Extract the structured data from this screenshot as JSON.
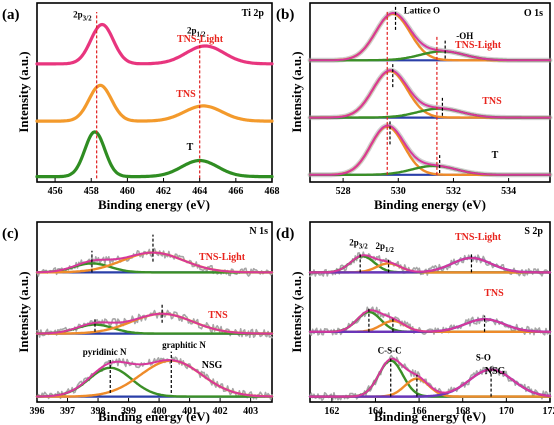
{
  "colors": {
    "tns_light": "#e8357e",
    "tns": "#f39a2c",
    "t": "#2f8d22",
    "raw": "#a6a6a6",
    "envelope": "#d6389b",
    "baseline": "#2a3fa8",
    "comp_orange": "#ee8b2a",
    "comp_green": "#3b8f27",
    "comp_purple": "#6a35b8",
    "label_red": "#e8231c",
    "marker_red": "#e02020",
    "marker_black": "#000000"
  },
  "chart_data": [
    {
      "id": "a",
      "panel_label": "(a)",
      "title": "Ti 2p",
      "type": "line",
      "xlabel": "Binding energy (eV)",
      "ylabel": "Intensity (a.u.)",
      "xlim": [
        455,
        468
      ],
      "xticks": [
        456,
        458,
        460,
        462,
        464,
        466,
        468
      ],
      "reverse_x": false,
      "series": [
        {
          "name": "TNS-Light",
          "offset": 0.66,
          "color_key": "tns_light",
          "peaks": [
            [
              458.6,
              0.22,
              0.62
            ],
            [
              464.3,
              0.1,
              1.05
            ]
          ]
        },
        {
          "name": "TNS",
          "offset": 0.34,
          "color_key": "tns",
          "peaks": [
            [
              458.5,
              0.2,
              0.62
            ],
            [
              464.2,
              0.085,
              1.05
            ]
          ]
        },
        {
          "name": "T",
          "offset": 0.03,
          "color_key": "t",
          "peaks": [
            [
              458.2,
              0.25,
              0.55
            ],
            [
              464.0,
              0.09,
              1.0
            ]
          ]
        }
      ],
      "markers": [
        {
          "x": 458.3,
          "y0": 0.02,
          "y1": 0.95,
          "color_key": "marker_red"
        },
        {
          "x": 464.0,
          "y0": 0.02,
          "y1": 0.8,
          "color_key": "marker_red"
        }
      ],
      "annotations": [
        {
          "main": "2p",
          "sub": "3/2",
          "x": 457.0,
          "y": 0.92
        },
        {
          "main": "2p",
          "sub": "1/2",
          "x": 463.3,
          "y": 0.83
        }
      ]
    },
    {
      "id": "b",
      "panel_label": "(b)",
      "title": "O 1s",
      "type": "line",
      "xlabel": "Binding energy (eV)",
      "ylabel": "Intensity (a.u.)",
      "xlim": [
        526.8,
        535.5
      ],
      "xticks": [
        528,
        530,
        532,
        534
      ],
      "reverse_x": false,
      "series": [
        {
          "name": "TNS-Light",
          "offset": 0.68,
          "color_key": "tns_light",
          "peaks": [
            [
              529.8,
              0.26,
              0.62
            ],
            [
              531.6,
              0.05,
              0.8
            ]
          ]
        },
        {
          "name": "TNS",
          "offset": 0.36,
          "color_key": "tns",
          "peaks": [
            [
              529.7,
              0.26,
              0.62
            ],
            [
              531.5,
              0.05,
              0.8
            ]
          ]
        },
        {
          "name": "T",
          "offset": 0.04,
          "color_key": "t",
          "peaks": [
            [
              529.6,
              0.27,
              0.6
            ],
            [
              531.3,
              0.05,
              0.8
            ]
          ]
        }
      ],
      "markers": [
        {
          "x": 529.6,
          "y0": 0.04,
          "y1": 0.96,
          "color_key": "marker_red"
        },
        {
          "x": 531.4,
          "y0": 0.04,
          "y1": 0.82,
          "color_key": "marker_red"
        },
        {
          "x": 529.9,
          "y0": 0.85,
          "y1": 0.99,
          "color_key": "marker_black"
        },
        {
          "x": 531.7,
          "y0": 0.69,
          "y1": 0.79,
          "color_key": "marker_black"
        },
        {
          "x": 529.8,
          "y0": 0.53,
          "y1": 0.67,
          "color_key": "marker_black"
        },
        {
          "x": 531.6,
          "y0": 0.37,
          "y1": 0.47,
          "color_key": "marker_black"
        },
        {
          "x": 529.7,
          "y0": 0.21,
          "y1": 0.35,
          "color_key": "marker_black"
        },
        {
          "x": 531.5,
          "y0": 0.05,
          "y1": 0.15,
          "color_key": "marker_black"
        }
      ],
      "annotations": [
        {
          "main": "Lattice O",
          "sub": "",
          "x": 530.2,
          "y": 0.94
        },
        {
          "main": "-OH",
          "sub": "",
          "x": 532.1,
          "y": 0.8
        }
      ]
    },
    {
      "id": "c",
      "panel_label": "(c)",
      "title": "N 1s",
      "type": "line",
      "xlabel": "Binding energy (eV)",
      "ylabel": "Intensity (a.u.)",
      "xlim": [
        396,
        403.7
      ],
      "xticks": [
        396,
        397,
        398,
        399,
        400,
        401,
        402,
        403
      ],
      "reverse_x": false,
      "series": [
        {
          "name": "TNS-Light",
          "offset": 0.72,
          "color_key": "tns_light",
          "peaks": [
            [
              397.8,
              0.05,
              0.6
            ],
            [
              399.8,
              0.11,
              1.0
            ]
          ]
        },
        {
          "name": "TNS",
          "offset": 0.38,
          "color_key": "tns",
          "peaks": [
            [
              397.9,
              0.05,
              0.6
            ],
            [
              400.1,
              0.11,
              1.0
            ]
          ]
        },
        {
          "name": "NSG",
          "offset": 0.03,
          "color_key": "tns",
          "peaks": [
            [
              398.4,
              0.16,
              0.7
            ],
            [
              400.4,
              0.2,
              1.0
            ]
          ]
        }
      ],
      "markers": [
        {
          "x": 397.8,
          "y0": 0.72,
          "y1": 0.84,
          "color_key": "marker_black"
        },
        {
          "x": 399.8,
          "y0": 0.78,
          "y1": 0.93,
          "color_key": "marker_black"
        },
        {
          "x": 397.9,
          "y0": 0.39,
          "y1": 0.46,
          "color_key": "marker_black"
        },
        {
          "x": 400.1,
          "y0": 0.44,
          "y1": 0.55,
          "color_key": "marker_black"
        },
        {
          "x": 398.4,
          "y0": 0.05,
          "y1": 0.24,
          "color_key": "marker_black"
        },
        {
          "x": 400.4,
          "y0": 0.05,
          "y1": 0.28,
          "color_key": "marker_black"
        }
      ],
      "annotations": [
        {
          "main": "pyridinic N",
          "sub": "",
          "x": 397.5,
          "y": 0.26
        },
        {
          "main": "graphitic N",
          "sub": "",
          "x": 400.1,
          "y": 0.3
        }
      ]
    },
    {
      "id": "d",
      "panel_label": "(d)",
      "title": "S 2p",
      "type": "line",
      "xlabel": "Binding energy (eV)",
      "ylabel": "Intensity (a.u.)",
      "xlim": [
        161,
        172
      ],
      "xticks": [
        162,
        164,
        166,
        168,
        170,
        172
      ],
      "reverse_x": false,
      "series": [
        {
          "name": "TNS-Light",
          "offset": 0.72,
          "color_key": "tns_light",
          "peaks": [
            [
              163.4,
              0.09,
              0.55
            ],
            [
              164.6,
              0.05,
              0.55
            ],
            [
              168.4,
              0.08,
              0.9
            ]
          ]
        },
        {
          "name": "TNS",
          "offset": 0.39,
          "color_key": "tns",
          "peaks": [
            [
              163.7,
              0.11,
              0.55
            ],
            [
              164.8,
              0.06,
              0.55
            ],
            [
              169.0,
              0.07,
              0.9
            ]
          ]
        },
        {
          "name": "NSG",
          "offset": 0.03,
          "color_key": "tns",
          "peaks": [
            [
              164.7,
              0.2,
              0.55
            ],
            [
              165.9,
              0.1,
              0.55
            ],
            [
              169.3,
              0.15,
              1.0
            ]
          ]
        }
      ],
      "markers": [
        {
          "x": 163.3,
          "y0": 0.72,
          "y1": 0.83,
          "color_key": "marker_black"
        },
        {
          "x": 164.6,
          "y0": 0.72,
          "y1": 0.79,
          "color_key": "marker_black"
        },
        {
          "x": 168.4,
          "y0": 0.72,
          "y1": 0.82,
          "color_key": "marker_black"
        },
        {
          "x": 163.7,
          "y0": 0.39,
          "y1": 0.52,
          "color_key": "marker_black"
        },
        {
          "x": 164.8,
          "y0": 0.39,
          "y1": 0.47,
          "color_key": "marker_black"
        },
        {
          "x": 169.0,
          "y0": 0.39,
          "y1": 0.48,
          "color_key": "marker_black"
        },
        {
          "x": 164.7,
          "y0": 0.03,
          "y1": 0.24,
          "color_key": "marker_black"
        },
        {
          "x": 165.9,
          "y0": 0.03,
          "y1": 0.15,
          "color_key": "marker_black"
        },
        {
          "x": 169.3,
          "y0": 0.03,
          "y1": 0.2,
          "color_key": "marker_black"
        }
      ],
      "annotations": [
        {
          "main": "2p",
          "sub": "3/2",
          "x": 162.8,
          "y": 0.87
        },
        {
          "main": "2p",
          "sub": "1/2",
          "x": 164.0,
          "y": 0.85
        },
        {
          "main": "C-S-C",
          "sub": "",
          "x": 164.1,
          "y": 0.27
        },
        {
          "main": "S-O",
          "sub": "",
          "x": 168.6,
          "y": 0.23
        }
      ]
    }
  ]
}
